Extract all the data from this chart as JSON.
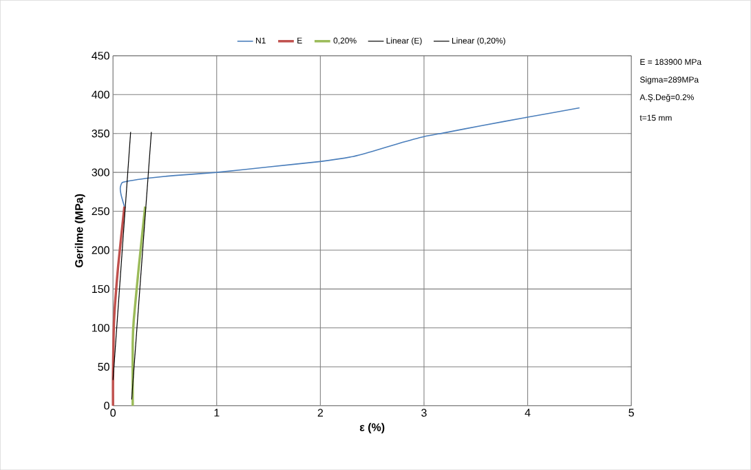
{
  "chart_data": {
    "type": "line",
    "xlabel": "ε (%)",
    "ylabel": "Gerilme (MPa)",
    "xlim": [
      0,
      5
    ],
    "ylim": [
      0,
      450
    ],
    "xticks": [
      0,
      1,
      2,
      3,
      4,
      5
    ],
    "yticks": [
      0,
      50,
      100,
      150,
      200,
      250,
      300,
      350,
      400,
      450
    ],
    "grid": true,
    "legend": "top",
    "series": [
      {
        "name": "N1",
        "color": "#4a7ebb",
        "x": [
          0.11,
          0.08,
          0.07,
          0.09,
          0.2,
          0.37,
          0.6,
          1,
          1.5,
          2,
          2.3,
          2.5,
          2.75,
          3,
          3.2,
          3.55,
          4,
          4.5
        ],
        "values": [
          256,
          270,
          280,
          287,
          290,
          293,
          296,
          300,
          307,
          314,
          320,
          327,
          337,
          346,
          351,
          360,
          371,
          383
        ]
      },
      {
        "name": "E",
        "color": "#c0504d",
        "x": [
          0,
          0,
          0.01,
          0.05,
          0.11
        ],
        "values": [
          0,
          40,
          110,
          180,
          256
        ]
      },
      {
        "name": "0,20%",
        "color": "#9bbb59",
        "x": [
          0.19,
          0.19,
          0.2,
          0.25,
          0.31
        ],
        "values": [
          0,
          80,
          110,
          180,
          256
        ]
      },
      {
        "name": "Linear (E)",
        "color": "#000000",
        "x": [
          0,
          0.17
        ],
        "values": [
          33,
          352
        ]
      },
      {
        "name": "Linear (0,20%)",
        "color": "#000000",
        "x": [
          0.18,
          0.37
        ],
        "values": [
          8,
          352
        ]
      }
    ],
    "annotations": [
      "E = 183900 MPa",
      "Sigma=289MPa",
      "A.Ş.Değ=0.2%",
      "t=15 mm"
    ]
  }
}
